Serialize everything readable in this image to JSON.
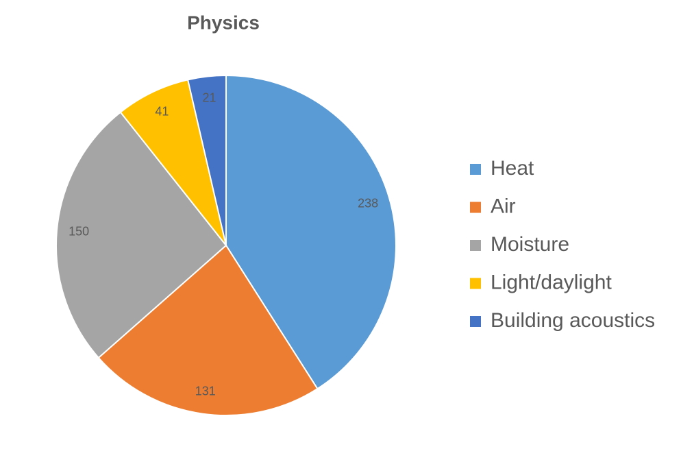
{
  "chart_data": {
    "type": "pie",
    "title": "Physics",
    "categories": [
      "Heat",
      "Air",
      "Moisture",
      "Light/daylight",
      "Building acoustics"
    ],
    "values": [
      238,
      131,
      150,
      41,
      21
    ],
    "colors": [
      "#5b9bd5",
      "#ed7d31",
      "#a5a5a5",
      "#ffc000",
      "#4472c4"
    ],
    "legend": "right"
  }
}
